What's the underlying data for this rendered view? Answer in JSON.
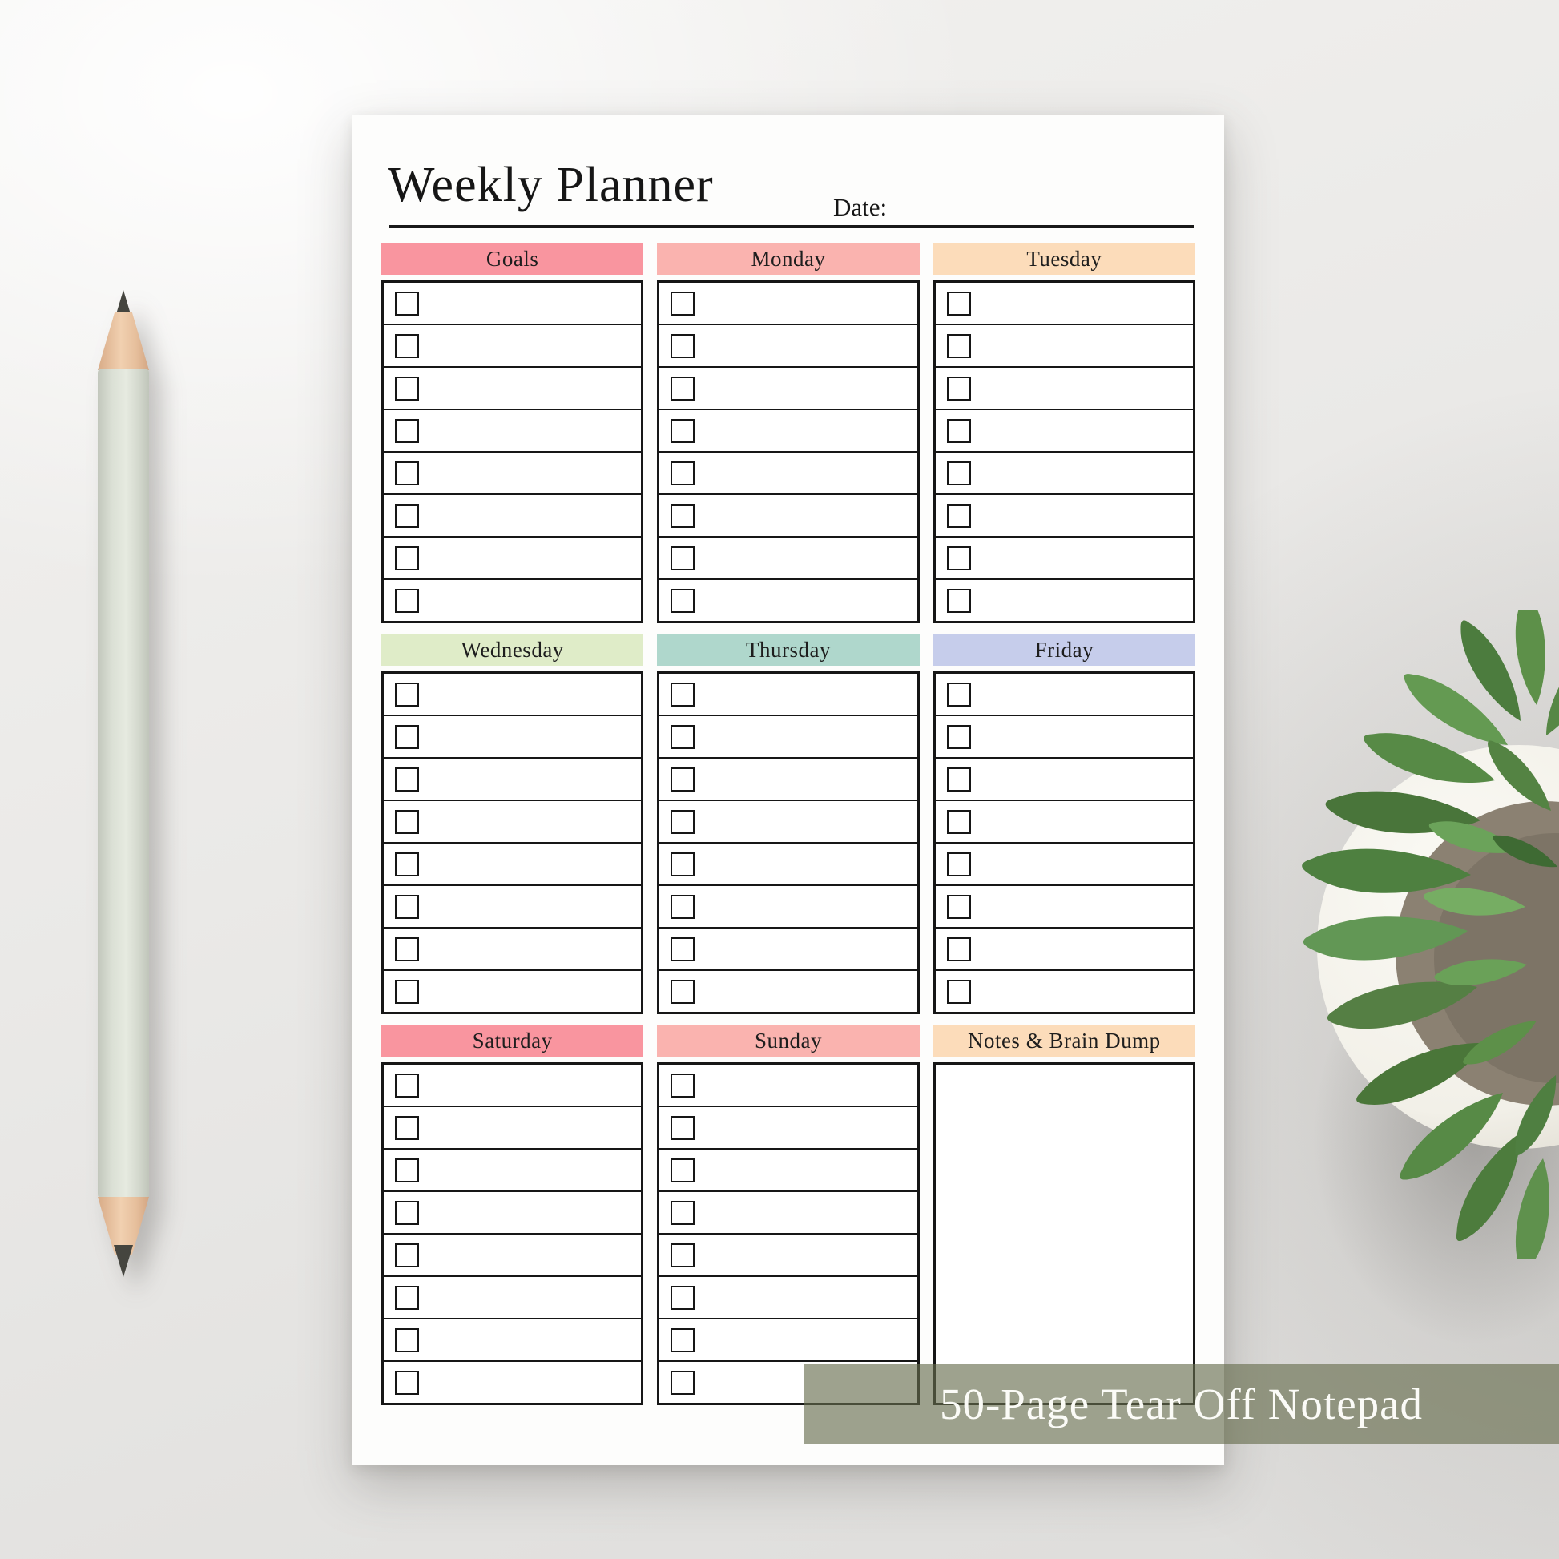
{
  "page": {
    "title": "Weekly Planner",
    "date_label": "Date:"
  },
  "sections": [
    {
      "id": "goals",
      "label": "Goals",
      "color": "#f9959f",
      "rows": 8
    },
    {
      "id": "monday",
      "label": "Monday",
      "color": "#fab3af",
      "rows": 8
    },
    {
      "id": "tuesday",
      "label": "Tuesday",
      "color": "#fcdcba",
      "rows": 8
    },
    {
      "id": "wednesday",
      "label": "Wednesday",
      "color": "#dfecc8",
      "rows": 8
    },
    {
      "id": "thursday",
      "label": "Thursday",
      "color": "#afd7cc",
      "rows": 8
    },
    {
      "id": "friday",
      "label": "Friday",
      "color": "#c6cdeb",
      "rows": 8
    },
    {
      "id": "saturday",
      "label": "Saturday",
      "color": "#f9959f",
      "rows": 8
    },
    {
      "id": "sunday",
      "label": "Sunday",
      "color": "#fab3af",
      "rows": 8
    },
    {
      "id": "notes",
      "label": "Notes & Brain Dump",
      "color": "#fcdcba",
      "rows": 0
    }
  ],
  "banner": {
    "text": "50-Page Tear Off Notepad",
    "color": "#68704e"
  },
  "decor": {
    "objects": [
      "pencil",
      "succulent-plant-in-white-pot"
    ],
    "paper_color": "#fdfdfc",
    "checkbox_style": "empty-square"
  }
}
